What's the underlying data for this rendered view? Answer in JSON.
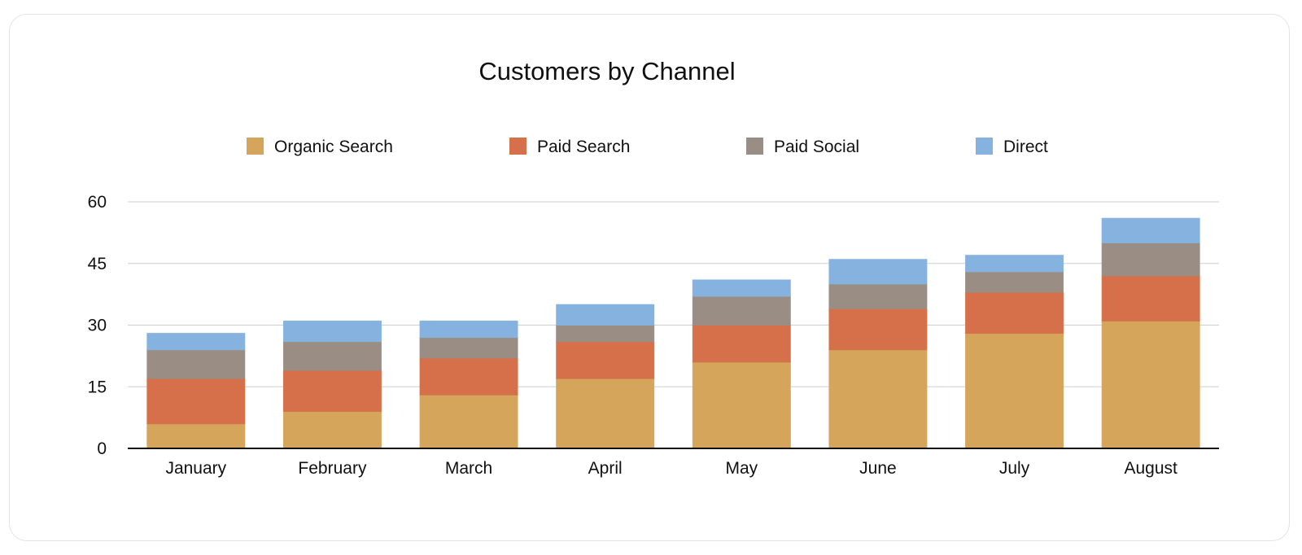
{
  "chart_data": {
    "type": "bar",
    "stacked": true,
    "title": "Customers by Channel",
    "xlabel": "",
    "ylabel": "",
    "categories": [
      "January",
      "February",
      "March",
      "April",
      "May",
      "June",
      "July",
      "August"
    ],
    "ylim": [
      0,
      60
    ],
    "yticks": [
      0,
      15,
      30,
      45,
      60
    ],
    "grid": true,
    "legend_position": "top",
    "series": [
      {
        "name": "Organic Search",
        "color": "#D4A55B",
        "values": [
          6,
          9,
          13,
          17,
          21,
          24,
          28,
          31
        ]
      },
      {
        "name": "Paid Search",
        "color": "#D5704A",
        "values": [
          11,
          10,
          9,
          9,
          9,
          10,
          10,
          11
        ]
      },
      {
        "name": "Paid Social",
        "color": "#9A8E84",
        "values": [
          7,
          7,
          5,
          4,
          7,
          6,
          5,
          8
        ]
      },
      {
        "name": "Direct",
        "color": "#85B2DE",
        "values": [
          4,
          5,
          4,
          5,
          4,
          6,
          4,
          6
        ]
      }
    ]
  }
}
